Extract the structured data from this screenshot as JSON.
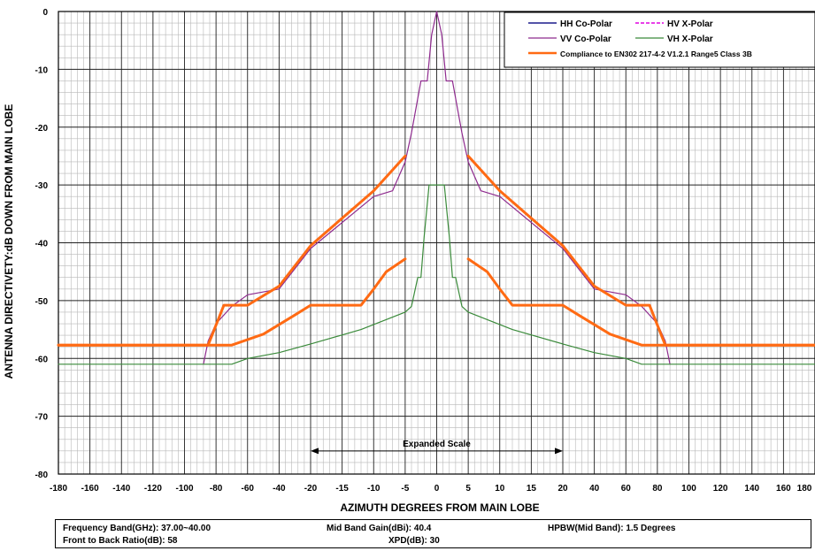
{
  "chart_data": {
    "type": "line",
    "xlabel": "AZIMUTH DEGREES FROM MAIN LOBE",
    "ylabel": "ANTENNA DIRECTIVETY:dB DOWN FROM MAIN LOBE",
    "ylim": [
      -80,
      0
    ],
    "y_ticks": [
      0,
      -10,
      -20,
      -30,
      -40,
      -50,
      -60,
      -70,
      -80
    ],
    "x_tick_labels": [
      "-180",
      "-160",
      "-140",
      "-120",
      "-100",
      "-80",
      "-60",
      "-40",
      "-20",
      "-15",
      "-10",
      "-5",
      "0",
      "5",
      "10",
      "15",
      "20",
      "40",
      "60",
      "80",
      "100",
      "120",
      "140",
      "160",
      "180"
    ],
    "x_scale_note": "piecewise: outer regions 20 deg per major division, central region -20..20 expanded 5 deg per major division",
    "grid": true,
    "legend_position": "top-right",
    "annotation": {
      "text": "Expanded Scale",
      "from": -20,
      "to": 20,
      "y": -76
    },
    "series": [
      {
        "name": "HH Co-Polar",
        "color": "#1c1c8c",
        "width": 1.5,
        "dash": "solid",
        "points": []
      },
      {
        "name": "HV X-Polar",
        "color": "#e000e0",
        "width": 1.5,
        "dash": "dashed",
        "points": []
      },
      {
        "name": "VV Co-Polar",
        "color": "#8e2a8e",
        "width": 1.2,
        "dash": "solid",
        "points": [
          [
            -88,
            -61
          ],
          [
            -85,
            -57
          ],
          [
            -80,
            -54
          ],
          [
            -70,
            -51
          ],
          [
            -60,
            -49
          ],
          [
            -40,
            -48
          ],
          [
            -20,
            -41
          ],
          [
            -10,
            -32
          ],
          [
            -7,
            -31
          ],
          [
            -5,
            -26
          ],
          [
            -4,
            -21
          ],
          [
            -2.5,
            -12
          ],
          [
            -1.5,
            -12
          ],
          [
            -0.8,
            -4
          ],
          [
            0,
            0
          ],
          [
            0.8,
            -4
          ],
          [
            1.5,
            -12
          ],
          [
            2.5,
            -12
          ],
          [
            4,
            -21
          ],
          [
            5,
            -26
          ],
          [
            7,
            -31
          ],
          [
            10,
            -32
          ],
          [
            20,
            -41
          ],
          [
            40,
            -48
          ],
          [
            60,
            -49
          ],
          [
            70,
            -51
          ],
          [
            80,
            -54
          ],
          [
            85,
            -57
          ],
          [
            88,
            -61
          ]
        ]
      },
      {
        "name": "VH X-Polar",
        "color": "#3a8a3a",
        "width": 1.2,
        "dash": "solid",
        "points": [
          [
            -180,
            -61
          ],
          [
            -70,
            -61
          ],
          [
            -60,
            -60
          ],
          [
            -40,
            -59
          ],
          [
            -20,
            -57.5
          ],
          [
            -12,
            -55
          ],
          [
            -5,
            -52
          ],
          [
            -4,
            -51
          ],
          [
            -3,
            -46
          ],
          [
            -2.5,
            -46
          ],
          [
            -2,
            -39
          ],
          [
            -1.2,
            -30
          ],
          [
            1.2,
            -30
          ],
          [
            2,
            -39
          ],
          [
            2.5,
            -46
          ],
          [
            3,
            -46
          ],
          [
            4,
            -51
          ],
          [
            5,
            -52
          ],
          [
            12,
            -55
          ],
          [
            20,
            -57.5
          ],
          [
            40,
            -59
          ],
          [
            60,
            -60
          ],
          [
            70,
            -61
          ],
          [
            180,
            -61
          ]
        ]
      },
      {
        "name": "Compliance to EN302 217-4-2 V1.2.1 Range5 Class 3B",
        "color": "#ff6a13",
        "width": 3,
        "dash": "solid",
        "segments": [
          [
            [
              -180,
              -57.7
            ],
            [
              -85,
              -57.7
            ],
            [
              -75,
              -50.8
            ],
            [
              -60,
              -50.8
            ],
            [
              -40,
              -47.5
            ],
            [
              -20,
              -40.5
            ],
            [
              -10,
              -31
            ],
            [
              -5,
              -25
            ]
          ],
          [
            [
              5,
              -25
            ],
            [
              10,
              -31
            ],
            [
              20,
              -40.5
            ],
            [
              40,
              -47.5
            ],
            [
              60,
              -50.8
            ],
            [
              75,
              -50.8
            ],
            [
              85,
              -57.7
            ],
            [
              180,
              -57.7
            ]
          ],
          [
            [
              -180,
              -57.7
            ],
            [
              -70,
              -57.7
            ],
            [
              -50,
              -55.8
            ],
            [
              -30,
              -52.5
            ],
            [
              -20,
              -50.8
            ],
            [
              -12,
              -50.8
            ],
            [
              -10,
              -48
            ],
            [
              -8,
              -45
            ],
            [
              -5,
              -42.8
            ]
          ],
          [
            [
              5,
              -42.8
            ],
            [
              8,
              -45
            ],
            [
              10,
              -48
            ],
            [
              12,
              -50.8
            ],
            [
              20,
              -50.8
            ],
            [
              30,
              -52.5
            ],
            [
              50,
              -55.8
            ],
            [
              70,
              -57.7
            ],
            [
              180,
              -57.7
            ]
          ]
        ]
      }
    ]
  },
  "info": {
    "frequency_band": "Frequency Band(GHz): 37.00~40.00",
    "front_to_back": "Front to Back Ratio(dB):  58",
    "mid_band_gain": "Mid Band Gain(dBi):  40.4",
    "xpd": "XPD(dB): 30",
    "hpbw": "HPBW(Mid Band): 1.5  Degrees"
  }
}
